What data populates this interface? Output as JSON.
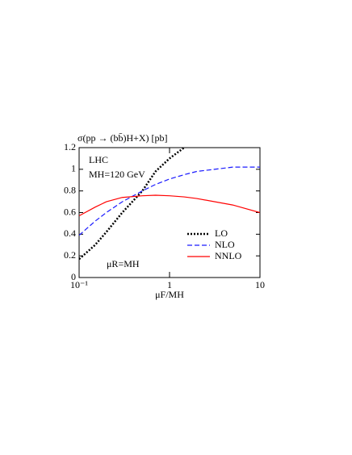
{
  "chart_data": {
    "type": "line",
    "title": "σ(pp → (bb̄)H+X) [pb]",
    "x_label": "μF/MH",
    "annotations": [
      "LHC",
      "MH=120 GeV",
      "μR=MH"
    ],
    "x": [
      0.1,
      0.15,
      0.2,
      0.3,
      0.5,
      0.7,
      1,
      1.45,
      2,
      5,
      10
    ],
    "series": [
      {
        "name": "LO",
        "color": "#000000",
        "dash": "dotted",
        "values": [
          0.17,
          0.3,
          0.42,
          0.6,
          0.8,
          0.98,
          1.1,
          1.2,
          null,
          null,
          null
        ]
      },
      {
        "name": "NLO",
        "color": "#1a1aff",
        "dash": "dashed",
        "values": [
          0.39,
          0.52,
          0.6,
          0.7,
          0.8,
          0.86,
          0.91,
          0.95,
          0.98,
          1.02,
          1.02
        ]
      },
      {
        "name": "NNLO",
        "color": "#ff0000",
        "dash": "solid",
        "values": [
          0.57,
          0.65,
          0.7,
          0.74,
          0.755,
          0.76,
          0.755,
          0.745,
          0.73,
          0.67,
          0.6
        ]
      }
    ],
    "xscale": "log",
    "xlim": [
      0.1,
      10
    ],
    "xticks": [
      {
        "value": 0.1,
        "label": "10⁻¹"
      },
      1,
      10
    ],
    "ylim": [
      0,
      1.2
    ],
    "yticks": [
      0,
      0.2,
      0.4,
      0.6,
      0.8,
      1,
      1.2
    ],
    "legend": "lower right"
  }
}
